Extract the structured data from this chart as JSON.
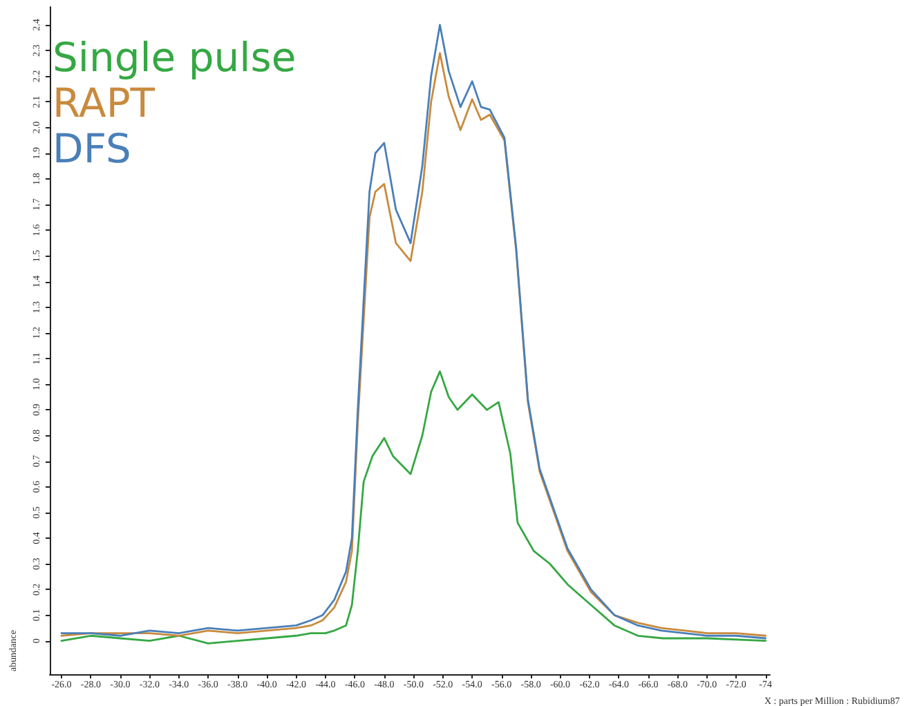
{
  "chart_data": {
    "type": "line",
    "xlabel": "X : parts per Million : Rubidium87",
    "ylabel": "abundance",
    "xlim": [
      -25.2,
      -74.3
    ],
    "xticks": [
      {
        "value": -26,
        "label": "-26.0"
      },
      {
        "value": -28,
        "label": "-28.0"
      },
      {
        "value": -30,
        "label": "-30.0"
      },
      {
        "value": -32,
        "label": "-32.0"
      },
      {
        "value": -34,
        "label": "-34.0"
      },
      {
        "value": -36,
        "label": "-36.0"
      },
      {
        "value": -38,
        "label": "-38.0"
      },
      {
        "value": -40,
        "label": "-40.0"
      },
      {
        "value": -42,
        "label": "-42.0"
      },
      {
        "value": -44,
        "label": "-44.0"
      },
      {
        "value": -46,
        "label": "-46.0"
      },
      {
        "value": -48,
        "label": "-48.0"
      },
      {
        "value": -50,
        "label": "-50.0"
      },
      {
        "value": -52,
        "label": "-52.0"
      },
      {
        "value": -54,
        "label": "-54.0"
      },
      {
        "value": -56,
        "label": "-56.0"
      },
      {
        "value": -58,
        "label": "-58.0"
      },
      {
        "value": -60,
        "label": "-60.0"
      },
      {
        "value": -62,
        "label": "-62.0"
      },
      {
        "value": -64,
        "label": "-64.0"
      },
      {
        "value": -66,
        "label": "-66.0"
      },
      {
        "value": -68,
        "label": "-68.0"
      },
      {
        "value": -70,
        "label": "-70.0"
      },
      {
        "value": -72,
        "label": "-72.0"
      },
      {
        "value": -74,
        "label": "-74"
      }
    ],
    "ylim": [
      -0.13,
      2.47
    ],
    "yticks": [
      0,
      0.1,
      0.2,
      0.3,
      0.4,
      0.5,
      0.6,
      0.7,
      0.8,
      0.9,
      {
        "value": 1,
        "label": "1.0"
      },
      1.1,
      1.2,
      1.3,
      1.4,
      1.5,
      1.6,
      1.7,
      1.8,
      1.9,
      {
        "value": 2,
        "label": "2.0"
      },
      2.1,
      2.2,
      2.3,
      2.4
    ],
    "grid": false,
    "legend": "top left",
    "marker": "none",
    "line_style": "solid",
    "series": [
      {
        "name": "Single pulse",
        "color": "#35a843",
        "x": [
          -26,
          -28,
          -30,
          -32,
          -34,
          -36,
          -38,
          -40,
          -42,
          -43,
          -44,
          -44.6,
          -45.4,
          -45.8,
          -46.2,
          -46.6,
          -47.2,
          -48.0,
          -48.6,
          -49.8,
          -50.6,
          -51.2,
          -51.8,
          -52.4,
          -53.0,
          -54.0,
          -55.0,
          -55.8,
          -56.6,
          -57.1,
          -58.2,
          -59.3,
          -60.5,
          -62.1,
          -63.7,
          -65.3,
          -67,
          -70,
          -74
        ],
        "values": [
          0.0,
          0.02,
          0.01,
          0.0,
          0.02,
          -0.01,
          0.0,
          0.01,
          0.02,
          0.03,
          0.03,
          0.04,
          0.06,
          0.14,
          0.35,
          0.62,
          0.72,
          0.79,
          0.72,
          0.65,
          0.8,
          0.97,
          1.05,
          0.95,
          0.9,
          0.96,
          0.9,
          0.93,
          0.73,
          0.46,
          0.35,
          0.3,
          0.22,
          0.14,
          0.06,
          0.02,
          0.01,
          0.01,
          0.0
        ]
      },
      {
        "name": "RAPT",
        "color": "#c98a3e",
        "x": [
          -26,
          -28,
          -30,
          -32,
          -34,
          -36,
          -38,
          -40,
          -42,
          -43,
          -43.8,
          -44.6,
          -45.4,
          -45.8,
          -46.2,
          -47.0,
          -47.4,
          -48.0,
          -48.8,
          -49.8,
          -50.6,
          -51.2,
          -51.8,
          -52.4,
          -53.2,
          -54.0,
          -54.6,
          -55.2,
          -56.2,
          -57.0,
          -57.8,
          -58.6,
          -59.7,
          -60.5,
          -62.1,
          -63.7,
          -65.3,
          -66.9,
          -68.5,
          -70,
          -72,
          -74
        ],
        "values": [
          0.02,
          0.03,
          0.03,
          0.03,
          0.02,
          0.04,
          0.03,
          0.04,
          0.05,
          0.06,
          0.08,
          0.13,
          0.23,
          0.35,
          0.85,
          1.65,
          1.75,
          1.78,
          1.55,
          1.48,
          1.75,
          2.1,
          2.29,
          2.12,
          1.99,
          2.11,
          2.03,
          2.05,
          1.95,
          1.52,
          0.93,
          0.66,
          0.48,
          0.35,
          0.19,
          0.1,
          0.07,
          0.05,
          0.04,
          0.03,
          0.03,
          0.02
        ]
      },
      {
        "name": "DFS",
        "color": "#4a7fb8",
        "x": [
          -26,
          -28,
          -30,
          -32,
          -34,
          -36,
          -38,
          -40,
          -42,
          -43,
          -43.8,
          -44.6,
          -45.4,
          -45.8,
          -46.2,
          -47.0,
          -47.4,
          -48.0,
          -48.8,
          -49.8,
          -50.6,
          -51.2,
          -51.8,
          -52.4,
          -53.2,
          -54.0,
          -54.6,
          -55.2,
          -56.2,
          -57.0,
          -57.8,
          -58.6,
          -59.7,
          -60.5,
          -62.1,
          -63.7,
          -65.3,
          -66.9,
          -68.5,
          -70,
          -72,
          -74
        ],
        "values": [
          0.03,
          0.03,
          0.02,
          0.04,
          0.03,
          0.05,
          0.04,
          0.05,
          0.06,
          0.08,
          0.1,
          0.16,
          0.27,
          0.4,
          0.9,
          1.75,
          1.9,
          1.94,
          1.68,
          1.55,
          1.85,
          2.2,
          2.4,
          2.22,
          2.08,
          2.18,
          2.08,
          2.07,
          1.96,
          1.53,
          0.94,
          0.67,
          0.49,
          0.36,
          0.2,
          0.1,
          0.06,
          0.04,
          0.03,
          0.02,
          0.02,
          0.01
        ]
      }
    ]
  }
}
